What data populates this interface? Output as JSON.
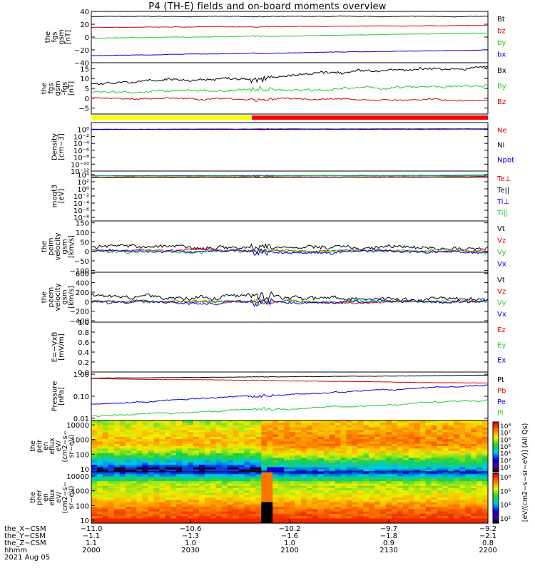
{
  "title": "P4 (TH-E) fields and on-board moments overview",
  "colors": {
    "black": "#000000",
    "red": "#dd0000",
    "green": "#22cc22",
    "blue": "#0000dd",
    "yellow": "#ffff00",
    "barred": "#ff0000"
  },
  "chart_data": [
    {
      "type": "line",
      "ylabel_lines": [
        "the",
        "fgs",
        "gsm",
        "[nT]"
      ],
      "ylim": [
        -40,
        40
      ],
      "yticks": [
        "40",
        "20",
        "0",
        "−20",
        "−40"
      ],
      "ytick_values": [
        40,
        20,
        0,
        -20,
        -40
      ],
      "series": [
        {
          "name": "Bt",
          "color": "black",
          "start": 32,
          "end": 32,
          "noise": 0.6
        },
        {
          "name": "bz",
          "color": "red",
          "start": 15,
          "end": 18,
          "noise": 0.5
        },
        {
          "name": "by",
          "color": "green",
          "start": -2,
          "end": 6,
          "noise": 0.6
        },
        {
          "name": "bx",
          "color": "blue",
          "start": -29,
          "end": -20,
          "noise": 0.5
        }
      ]
    },
    {
      "type": "line",
      "ylabel_lines": [
        "the",
        "fgs",
        "gsm",
        "-fgs",
        "[nT]"
      ],
      "ylim": [
        -8,
        18
      ],
      "yticks": [
        "15",
        "10",
        "5",
        "0",
        "−5"
      ],
      "ytick_values": [
        15,
        10,
        5,
        0,
        -5
      ],
      "series": [
        {
          "name": "Bx",
          "color": "black",
          "start": 7,
          "end": 16,
          "noise": 1.0
        },
        {
          "name": "By",
          "color": "green",
          "start": 3,
          "end": 6,
          "noise": 0.9
        },
        {
          "name": "Bz",
          "color": "red",
          "start": 0,
          "end": -1,
          "noise": 0.6
        }
      ]
    },
    {
      "type": "line",
      "ylabel_lines": [
        "Density",
        "[cm−3]"
      ],
      "ylim": [
        -12,
        2
      ],
      "log": true,
      "yticks": [
        "10⁰",
        "10⁻²",
        "10⁻⁴",
        "10⁻⁶",
        "10⁻⁸",
        "10⁻¹⁰",
        "10⁻¹²"
      ],
      "ytick_values": [
        0,
        -2,
        -4,
        -6,
        -8,
        -10,
        -12
      ],
      "series": [
        {
          "name": "Ne",
          "color": "red",
          "start": 0.1,
          "end": 0.2,
          "noise": 0.05
        },
        {
          "name": "Ni",
          "color": "black",
          "start": 0.05,
          "end": 0.15,
          "noise": 0.05
        },
        {
          "name": "Npot",
          "color": "blue",
          "start": 0.0,
          "end": 0.1,
          "noise": 0.05
        }
      ]
    },
    {
      "type": "line",
      "ylabel_lines": [
        "moqt3",
        "[eV]"
      ],
      "ylim": [
        -9,
        5
      ],
      "log": true,
      "yticks": [
        "10⁴",
        "10²",
        "10⁰",
        "10⁻²",
        "10⁻⁴",
        "10⁻⁶",
        "10⁻⁸"
      ],
      "ytick_values": [
        4,
        2,
        0,
        -2,
        -4,
        -6,
        -8
      ],
      "series": [
        {
          "name": "Te⊥",
          "color": "red",
          "start": 3.2,
          "end": 3.3,
          "noise": 0.05
        },
        {
          "name": "Te||",
          "color": "black",
          "start": 3.3,
          "end": 3.4,
          "noise": 0.05
        },
        {
          "name": "Ti⊥",
          "color": "blue",
          "start": 3.7,
          "end": 3.8,
          "noise": 0.05
        },
        {
          "name": "Ti||",
          "color": "green",
          "start": 3.6,
          "end": 3.7,
          "noise": 0.05
        }
      ]
    },
    {
      "type": "line",
      "ylabel_lines": [
        "the",
        "peim",
        "velocity",
        "gsm",
        "[km/s]"
      ],
      "ylim": [
        -110,
        160
      ],
      "yticks": [
        "150",
        "100",
        "50",
        "0",
        "−50",
        "−100"
      ],
      "ytick_values": [
        150,
        100,
        50,
        0,
        -50,
        -100
      ],
      "series": [
        {
          "name": "Vt",
          "color": "black",
          "start": 30,
          "end": 15,
          "noise": 14
        },
        {
          "name": "Vz",
          "color": "red",
          "start": 5,
          "end": 2,
          "noise": 8
        },
        {
          "name": "Vy",
          "color": "green",
          "start": 0,
          "end": 2,
          "noise": 12
        },
        {
          "name": "Vx",
          "color": "blue",
          "start": 0,
          "end": -2,
          "noise": 10
        }
      ]
    },
    {
      "type": "line",
      "ylabel_lines": [
        "the",
        "peem",
        "velocity",
        "gsm",
        "[km/s]"
      ],
      "ylim": [
        -430,
        620
      ],
      "yticks": [
        "600",
        "400",
        "200",
        "0",
        "−200",
        "−400"
      ],
      "ytick_values": [
        600,
        400,
        200,
        0,
        -200,
        -400
      ],
      "series": [
        {
          "name": "Vt",
          "color": "black",
          "start": 120,
          "end": 70,
          "noise": 60
        },
        {
          "name": "Vz",
          "color": "red",
          "start": 0,
          "end": 0,
          "noise": 40
        },
        {
          "name": "Vy",
          "color": "green",
          "start": 0,
          "end": 0,
          "noise": 40
        },
        {
          "name": "Vx",
          "color": "blue",
          "start": 0,
          "end": 0,
          "noise": 45
        }
      ]
    },
    {
      "type": "line",
      "ylabel_lines": [
        "E=−VxB",
        "[mV/m]"
      ],
      "ylim": [
        0,
        1
      ],
      "yticks": [
        "1.0",
        "0.8",
        "0.6",
        "0.4",
        "0.2",
        "0.0"
      ],
      "ytick_values": [
        1,
        0.8,
        0.6,
        0.4,
        0.2,
        0
      ],
      "series": [
        {
          "name": "Ez",
          "color": "red",
          "values": []
        },
        {
          "name": "Ey",
          "color": "green",
          "values": []
        },
        {
          "name": "Ex",
          "color": "blue",
          "values": []
        }
      ]
    },
    {
      "type": "line",
      "ylabel_lines": [
        "Pressure",
        "[nPa]"
      ],
      "ylim": [
        -2.1,
        0.1
      ],
      "log": true,
      "yticks": [
        "1.00",
        "0.10",
        "0.01"
      ],
      "ytick_values": [
        0,
        -1,
        -2
      ],
      "series": [
        {
          "name": "Pt",
          "color": "black",
          "start": -0.18,
          "end": -0.05,
          "noise": 0.01
        },
        {
          "name": "Pb",
          "color": "red",
          "start": -0.2,
          "end": -0.4,
          "noise": 0.01
        },
        {
          "name": "Pe",
          "color": "blue",
          "start": -1.35,
          "end": -0.5,
          "noise": 0.04
        },
        {
          "name": "Pi",
          "color": "green",
          "start": -1.9,
          "end": -1.2,
          "noise": 0.05
        }
      ]
    },
    {
      "type": "heatmap",
      "ylabel_lines": [
        "the",
        "peir",
        "en",
        "eflux",
        "eV/",
        "(cm2−s−",
        "sr−eV)"
      ],
      "yticks": [
        "10000",
        "1000",
        "100",
        "10"
      ],
      "ytick_values": [
        4,
        3,
        2,
        1
      ]
    },
    {
      "type": "heatmap",
      "ylabel_lines": [
        "the",
        "peer",
        "en",
        "eflux",
        "eV/",
        "(cm2−s−",
        "sr−eV)"
      ],
      "yticks": [
        "10000",
        "1000",
        "100",
        "10"
      ],
      "ytick_values": [
        4,
        3,
        2,
        1
      ]
    }
  ],
  "colorbar": {
    "label": "[eV/(cm2−s−sr−eV)] (All Qs)",
    "top_ticks": [
      "10⁸",
      "10⁷",
      "10⁶",
      "10⁵",
      "10⁴",
      "10³",
      "10²"
    ],
    "bottom_ticks": [
      "10⁸",
      "10⁶",
      "10⁴",
      "10²"
    ]
  },
  "x_axis": {
    "rows": [
      {
        "label": "the_X−CSM",
        "values": [
          "−11.0",
          "−10.6",
          "−10.2",
          "−9.7",
          "−9.2"
        ]
      },
      {
        "label": "the_Y−CSM",
        "values": [
          "−1.1",
          "−1.3",
          "−1.6",
          "−1.8",
          "−2.1"
        ]
      },
      {
        "label": "the_Z−CSM",
        "values": [
          "1.1",
          "1.0",
          "1.0",
          "0.9",
          "0.8"
        ]
      },
      {
        "label": "hhmm",
        "values": [
          "2000",
          "2030",
          "2100",
          "2130",
          "2200"
        ]
      }
    ],
    "date": "2021 Aug 05"
  },
  "mode_bar": {
    "yellow_fraction": 0.405
  }
}
